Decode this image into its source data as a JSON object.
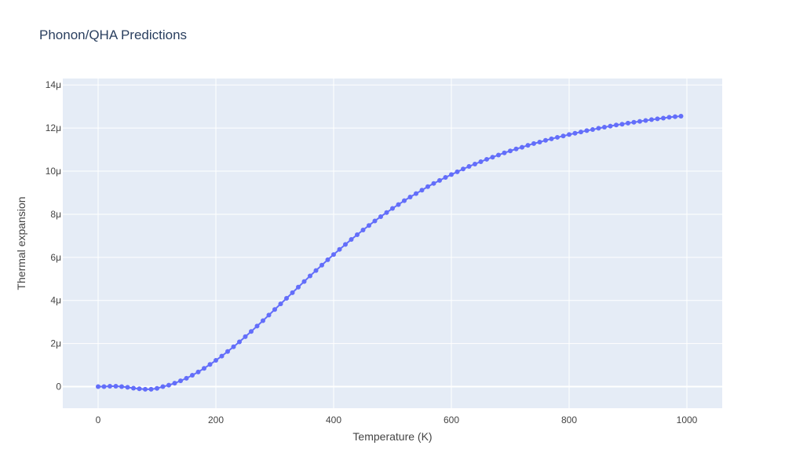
{
  "chart_data": {
    "type": "line",
    "title": "Phonon/QHA Predictions",
    "xlabel": "Temperature (K)",
    "ylabel": "Thermal expansion",
    "xlim": [
      -60,
      1060
    ],
    "ylim": [
      -1e-06,
      1.43e-05
    ],
    "x_ticks": [
      {
        "value": 0,
        "label": "0"
      },
      {
        "value": 200,
        "label": "200"
      },
      {
        "value": 400,
        "label": "400"
      },
      {
        "value": 600,
        "label": "600"
      },
      {
        "value": 800,
        "label": "800"
      },
      {
        "value": 1000,
        "label": "1000"
      }
    ],
    "y_ticks": [
      {
        "value": 0,
        "label": "0"
      },
      {
        "value": 2e-06,
        "label": "2μ"
      },
      {
        "value": 4e-06,
        "label": "4μ"
      },
      {
        "value": 6e-06,
        "label": "6μ"
      },
      {
        "value": 8e-06,
        "label": "8μ"
      },
      {
        "value": 1e-05,
        "label": "10μ"
      },
      {
        "value": 1.2e-05,
        "label": "12μ"
      },
      {
        "value": 1.4e-05,
        "label": "14μ"
      }
    ],
    "grid": true,
    "colors": {
      "series": "#636efa",
      "plot_bg": "#e5ecf6",
      "grid": "#ffffff"
    },
    "series": [
      {
        "x": [
          0,
          10,
          20,
          30,
          40,
          50,
          60,
          70,
          80,
          90,
          100,
          110,
          120,
          130,
          140,
          150,
          160,
          170,
          180,
          190,
          200,
          210,
          220,
          230,
          240,
          250,
          260,
          270,
          280,
          290,
          300,
          310,
          320,
          330,
          340,
          350,
          360,
          370,
          380,
          390,
          400,
          410,
          420,
          430,
          440,
          450,
          460,
          470,
          480,
          490,
          500,
          510,
          520,
          530,
          540,
          550,
          560,
          570,
          580,
          590,
          600,
          610,
          620,
          630,
          640,
          650,
          660,
          670,
          680,
          690,
          700,
          710,
          720,
          730,
          740,
          750,
          760,
          770,
          780,
          790,
          800,
          810,
          820,
          830,
          840,
          850,
          860,
          870,
          880,
          890,
          900,
          910,
          920,
          930,
          940,
          950,
          960,
          970,
          980,
          990
        ],
        "y": [
          0,
          0,
          2e-08,
          2e-08,
          0,
          -3e-08,
          -7e-08,
          -1e-07,
          -1.2e-07,
          -1.2e-07,
          -8e-08,
          0,
          7e-08,
          1.6e-07,
          2.7e-07,
          3.9e-07,
          5.3e-07,
          6.8e-07,
          8.5e-07,
          1.03e-06,
          1.22e-06,
          1.42e-06,
          1.63e-06,
          1.85e-06,
          2.08e-06,
          2.32e-06,
          2.56e-06,
          2.81e-06,
          3.06e-06,
          3.32e-06,
          3.58e-06,
          3.84e-06,
          4.1e-06,
          4.36e-06,
          4.62e-06,
          4.88e-06,
          5.14e-06,
          5.39e-06,
          5.64e-06,
          5.89e-06,
          6.13e-06,
          6.37e-06,
          6.6e-06,
          6.83e-06,
          7.05e-06,
          7.27e-06,
          7.48e-06,
          7.69e-06,
          7.89e-06,
          8.08e-06,
          8.27e-06,
          8.45e-06,
          8.63e-06,
          8.8e-06,
          8.96e-06,
          9.12e-06,
          9.28e-06,
          9.43e-06,
          9.57e-06,
          9.71e-06,
          9.84e-06,
          9.97e-06,
          1.01e-05,
          1.022e-05,
          1.033e-05,
          1.044e-05,
          1.055e-05,
          1.065e-05,
          1.075e-05,
          1.085e-05,
          1.094e-05,
          1.103e-05,
          1.111e-05,
          1.12e-05,
          1.128e-05,
          1.135e-05,
          1.143e-05,
          1.15e-05,
          1.157e-05,
          1.163e-05,
          1.17e-05,
          1.176e-05,
          1.182e-05,
          1.188e-05,
          1.193e-05,
          1.199e-05,
          1.204e-05,
          1.209e-05,
          1.214e-05,
          1.218e-05,
          1.223e-05,
          1.227e-05,
          1.231e-05,
          1.235e-05,
          1.239e-05,
          1.243e-05,
          1.246e-05,
          1.25e-05,
          1.253e-05,
          1.255e-05
        ]
      }
    ]
  }
}
